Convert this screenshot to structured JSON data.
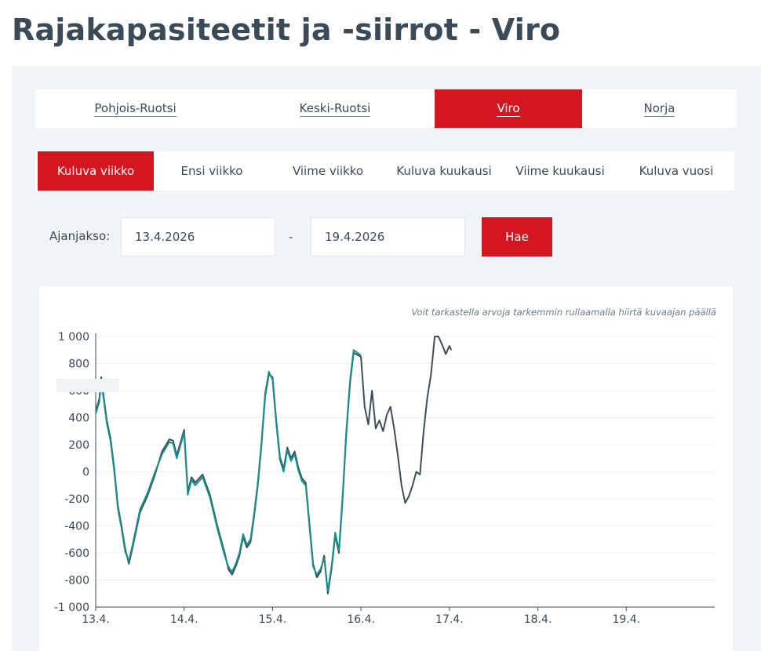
{
  "page": {
    "title": "Rajakapasiteetit ja -siirrot - Viro"
  },
  "tabs_primary": [
    {
      "label": "Pohjois-Ruotsi",
      "active": false
    },
    {
      "label": "Keski-Ruotsi",
      "active": false
    },
    {
      "label": "Viro",
      "active": true
    },
    {
      "label": "Norja",
      "active": false
    }
  ],
  "tabs_period": [
    {
      "label": "Kuluva viikko",
      "active": true
    },
    {
      "label": "Ensi viikko",
      "active": false
    },
    {
      "label": "Viime viikko",
      "active": false
    },
    {
      "label": "Kuluva kuukausi",
      "active": false
    },
    {
      "label": "Viime kuukausi",
      "active": false
    },
    {
      "label": "Kuluva vuosi",
      "active": false
    }
  ],
  "filter": {
    "label": "Ajanjakso:",
    "start_date": "13.4.2026",
    "separator": "-",
    "end_date": "19.4.2026",
    "button_label": "Hae"
  },
  "chart_hint": "Voit tarkastella arvoja tarkemmin rullaamalla hiirtä kuvaajan päällä",
  "colors": {
    "accent": "#d3161f",
    "series_dark": "#3d4e5b",
    "series_teal": "#16908c",
    "text": "#3a4a56"
  },
  "chart_data": {
    "type": "line",
    "x_unit": "day",
    "x_ticks": [
      "13.4.",
      "14.4.",
      "15.4.",
      "16.4.",
      "17.4.",
      "18.4.",
      "19.4."
    ],
    "xlim": [
      "13.4.",
      "20.4."
    ],
    "y_ticks": [
      "1 000",
      "800",
      "600",
      "400",
      "200",
      "0",
      "-200",
      "-400",
      "-600",
      "-800",
      "-1 000"
    ],
    "ylim": [
      -1000,
      1000
    ],
    "grid": true,
    "series": [
      {
        "color": "#3d4e5b",
        "points": [
          [
            "13.4. 00:00",
            450
          ],
          [
            "13.4. 01:00",
            540
          ],
          [
            "13.4. 01:30",
            700
          ],
          [
            "13.4. 02:00",
            590
          ],
          [
            "13.4. 03:00",
            380
          ],
          [
            "13.4. 04:00",
            250
          ],
          [
            "13.4. 05:00",
            30
          ],
          [
            "13.4. 06:00",
            -250
          ],
          [
            "13.4. 07:00",
            -400
          ],
          [
            "13.4. 08:00",
            -570
          ],
          [
            "13.4. 09:00",
            -680
          ],
          [
            "13.4. 10:00",
            -560
          ],
          [
            "13.4. 12:00",
            -300
          ],
          [
            "13.4. 14:00",
            -180
          ],
          [
            "13.4. 16:00",
            -30
          ],
          [
            "13.4. 18:00",
            150
          ],
          [
            "13.4. 20:00",
            240
          ],
          [
            "13.4. 21:00",
            230
          ],
          [
            "13.4. 22:00",
            120
          ],
          [
            "14.4. 00:00",
            310
          ],
          [
            "14.4. 01:00",
            -150
          ],
          [
            "14.4. 02:00",
            -40
          ],
          [
            "14.4. 03:00",
            -80
          ],
          [
            "14.4. 05:00",
            -20
          ],
          [
            "14.4. 07:00",
            -170
          ],
          [
            "14.4. 09:00",
            -400
          ],
          [
            "14.4. 11:00",
            -600
          ],
          [
            "14.4. 12:00",
            -720
          ],
          [
            "14.4. 13:00",
            -760
          ],
          [
            "14.4. 14:00",
            -700
          ],
          [
            "14.4. 15:00",
            -620
          ],
          [
            "14.4. 16:00",
            -480
          ],
          [
            "14.4. 17:00",
            -560
          ],
          [
            "14.4. 18:00",
            -520
          ],
          [
            "14.4. 19:00",
            -330
          ],
          [
            "14.4. 20:00",
            -100
          ],
          [
            "14.4. 21:00",
            200
          ],
          [
            "14.4. 22:00",
            560
          ],
          [
            "14.4. 23:00",
            720
          ],
          [
            "15.4. 00:00",
            700
          ],
          [
            "15.4. 01:00",
            380
          ],
          [
            "15.4. 02:00",
            110
          ],
          [
            "15.4. 03:00",
            20
          ],
          [
            "15.4. 04:00",
            180
          ],
          [
            "15.4. 05:00",
            100
          ],
          [
            "15.4. 06:00",
            150
          ],
          [
            "15.4. 07:00",
            30
          ],
          [
            "15.4. 08:00",
            -50
          ],
          [
            "15.4. 09:00",
            -80
          ],
          [
            "15.4. 10:00",
            -380
          ],
          [
            "15.4. 11:00",
            -680
          ],
          [
            "15.4. 12:00",
            -780
          ],
          [
            "15.4. 13:00",
            -740
          ],
          [
            "15.4. 14:00",
            -620
          ],
          [
            "15.4. 15:00",
            -900
          ],
          [
            "15.4. 16:00",
            -720
          ],
          [
            "15.4. 17:00",
            -470
          ],
          [
            "15.4. 18:00",
            -600
          ],
          [
            "15.4. 19:00",
            -200
          ],
          [
            "15.4. 20:00",
            280
          ],
          [
            "15.4. 21:00",
            650
          ],
          [
            "15.4. 22:00",
            880
          ],
          [
            "16.4. 00:00",
            850
          ],
          [
            "16.4. 01:00",
            480
          ],
          [
            "16.4. 02:00",
            350
          ],
          [
            "16.4. 03:00",
            600
          ],
          [
            "16.4. 04:00",
            320
          ],
          [
            "16.4. 05:00",
            380
          ],
          [
            "16.4. 06:00",
            300
          ],
          [
            "16.4. 07:00",
            420
          ],
          [
            "16.4. 08:00",
            480
          ],
          [
            "16.4. 09:00",
            320
          ],
          [
            "16.4. 10:00",
            120
          ],
          [
            "16.4. 11:00",
            -100
          ],
          [
            "16.4. 12:00",
            -230
          ],
          [
            "16.4. 13:00",
            -180
          ],
          [
            "16.4. 14:00",
            -100
          ],
          [
            "16.4. 15:00",
            0
          ],
          [
            "16.4. 16:00",
            -20
          ],
          [
            "16.4. 17:00",
            300
          ],
          [
            "16.4. 18:00",
            550
          ],
          [
            "16.4. 19:00",
            720
          ],
          [
            "16.4. 20:00",
            1000
          ],
          [
            "16.4. 21:00",
            1000
          ],
          [
            "16.4. 22:00",
            940
          ],
          [
            "16.4. 23:00",
            870
          ],
          [
            "17.4. 00:00",
            930
          ],
          [
            "17.4. 00:30",
            900
          ]
        ]
      },
      {
        "color": "#16908c",
        "points": [
          [
            "13.4. 00:00",
            430
          ],
          [
            "13.4. 01:00",
            520
          ],
          [
            "13.4. 01:30",
            680
          ],
          [
            "13.4. 02:00",
            570
          ],
          [
            "13.4. 03:00",
            360
          ],
          [
            "13.4. 04:00",
            230
          ],
          [
            "13.4. 05:00",
            10
          ],
          [
            "13.4. 06:00",
            -270
          ],
          [
            "13.4. 07:00",
            -420
          ],
          [
            "13.4. 08:00",
            -590
          ],
          [
            "13.4. 09:00",
            -660
          ],
          [
            "13.4. 10:00",
            -540
          ],
          [
            "13.4. 12:00",
            -280
          ],
          [
            "13.4. 14:00",
            -160
          ],
          [
            "13.4. 16:00",
            -10
          ],
          [
            "13.4. 18:00",
            130
          ],
          [
            "13.4. 20:00",
            220
          ],
          [
            "13.4. 21:00",
            210
          ],
          [
            "13.4. 22:00",
            100
          ],
          [
            "14.4. 00:00",
            290
          ],
          [
            "14.4. 01:00",
            -170
          ],
          [
            "14.4. 02:00",
            -60
          ],
          [
            "14.4. 03:00",
            -100
          ],
          [
            "14.4. 05:00",
            -40
          ],
          [
            "14.4. 07:00",
            -190
          ],
          [
            "14.4. 09:00",
            -420
          ],
          [
            "14.4. 11:00",
            -620
          ],
          [
            "14.4. 12:00",
            -700
          ],
          [
            "14.4. 13:00",
            -740
          ],
          [
            "14.4. 14:00",
            -680
          ],
          [
            "14.4. 15:00",
            -600
          ],
          [
            "14.4. 16:00",
            -460
          ],
          [
            "14.4. 17:00",
            -540
          ],
          [
            "14.4. 18:00",
            -500
          ],
          [
            "14.4. 19:00",
            -310
          ],
          [
            "14.4. 20:00",
            -80
          ],
          [
            "14.4. 21:00",
            220
          ],
          [
            "14.4. 22:00",
            580
          ],
          [
            "14.4. 23:00",
            740
          ],
          [
            "15.4. 00:00",
            680
          ],
          [
            "15.4. 01:00",
            360
          ],
          [
            "15.4. 02:00",
            90
          ],
          [
            "15.4. 03:00",
            0
          ],
          [
            "15.4. 04:00",
            160
          ],
          [
            "15.4. 05:00",
            80
          ],
          [
            "15.4. 06:00",
            130
          ],
          [
            "15.4. 07:00",
            10
          ],
          [
            "15.4. 08:00",
            -70
          ],
          [
            "15.4. 09:00",
            -100
          ],
          [
            "15.4. 10:00",
            -400
          ],
          [
            "15.4. 11:00",
            -700
          ],
          [
            "15.4. 12:00",
            -760
          ],
          [
            "15.4. 13:00",
            -720
          ],
          [
            "15.4. 14:00",
            -640
          ],
          [
            "15.4. 15:00",
            -880
          ],
          [
            "15.4. 16:00",
            -700
          ],
          [
            "15.4. 17:00",
            -450
          ],
          [
            "15.4. 18:00",
            -580
          ],
          [
            "15.4. 19:00",
            -180
          ],
          [
            "15.4. 20:00",
            300
          ],
          [
            "15.4. 21:00",
            670
          ],
          [
            "15.4. 22:00",
            900
          ],
          [
            "16.4. 00:00",
            860
          ]
        ]
      }
    ]
  }
}
